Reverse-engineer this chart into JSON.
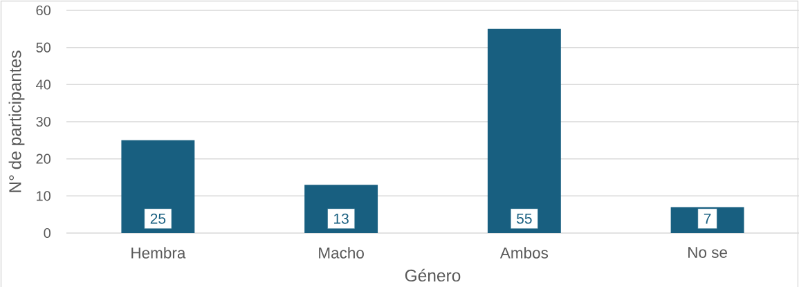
{
  "chart_data": {
    "type": "bar",
    "xlabel": "Género",
    "ylabel": "N° de participantes",
    "categories": [
      "Hembra",
      "Macho",
      "Ambos",
      "No se"
    ],
    "values": [
      25,
      13,
      55,
      7
    ],
    "color": "#185f80",
    "ylim": [
      0,
      60
    ],
    "yticks": [
      0,
      10,
      20,
      30,
      40,
      50,
      60
    ],
    "grid": "y",
    "data_labels": true
  }
}
